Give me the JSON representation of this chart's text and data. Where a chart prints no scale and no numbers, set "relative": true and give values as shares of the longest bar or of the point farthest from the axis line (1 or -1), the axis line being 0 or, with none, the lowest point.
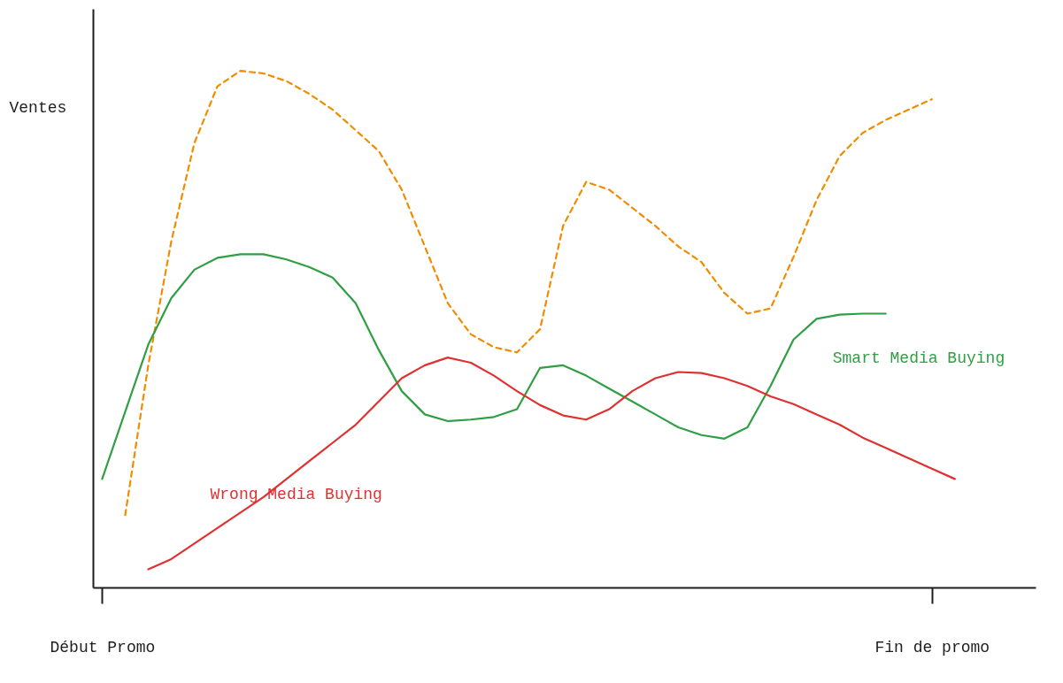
{
  "chart_data": {
    "type": "line",
    "relative": true,
    "ylabel": "Ventes",
    "legend": false,
    "grid": false,
    "marker": "none",
    "categories": [
      "Début Promo",
      null,
      null,
      null,
      null,
      null,
      null,
      null,
      null,
      null,
      null,
      null,
      null,
      null,
      null,
      null,
      null,
      null,
      null,
      null,
      null,
      null,
      null,
      null,
      null,
      null,
      null,
      null,
      null,
      null,
      null,
      null,
      null,
      null,
      null,
      null,
      "Fin de promo",
      null
    ],
    "series": [
      {
        "color": "#f08c00",
        "line_style": "dashed",
        "values": [
          null,
          0.14,
          0.43,
          0.67,
          0.86,
          0.97,
          1.0,
          0.995,
          0.98,
          0.955,
          0.925,
          0.885,
          0.845,
          0.77,
          0.66,
          0.55,
          0.49,
          0.465,
          0.455,
          0.5,
          0.7,
          0.785,
          0.77,
          0.735,
          0.7,
          0.66,
          0.63,
          0.57,
          0.53,
          0.54,
          0.64,
          0.75,
          0.835,
          0.88,
          0.905,
          0.925,
          0.945,
          null
        ]
      },
      {
        "name": "Smart Media Buying",
        "color": "#2f9e44",
        "line_style": "solid",
        "values": [
          0.21,
          0.34,
          0.47,
          0.56,
          0.615,
          0.638,
          0.645,
          0.645,
          0.635,
          0.62,
          0.6,
          0.55,
          0.46,
          0.38,
          0.335,
          0.322,
          0.325,
          0.33,
          0.345,
          0.425,
          0.43,
          0.41,
          0.385,
          0.36,
          0.335,
          0.31,
          0.295,
          0.288,
          0.31,
          0.39,
          0.48,
          0.52,
          0.528,
          0.53,
          0.53,
          null,
          null,
          null
        ]
      },
      {
        "name": "Wrong Media Buying",
        "color": "#e03131",
        "line_style": "solid",
        "values": [
          null,
          null,
          0.035,
          0.055,
          0.085,
          0.115,
          0.145,
          0.175,
          0.21,
          0.245,
          0.28,
          0.315,
          0.36,
          0.405,
          0.43,
          0.445,
          0.435,
          0.41,
          0.38,
          0.353,
          0.333,
          0.325,
          0.345,
          0.38,
          0.405,
          0.417,
          0.415,
          0.405,
          0.39,
          0.37,
          0.355,
          0.335,
          0.315,
          0.29,
          0.27,
          0.25,
          0.23,
          0.21
        ]
      }
    ]
  }
}
